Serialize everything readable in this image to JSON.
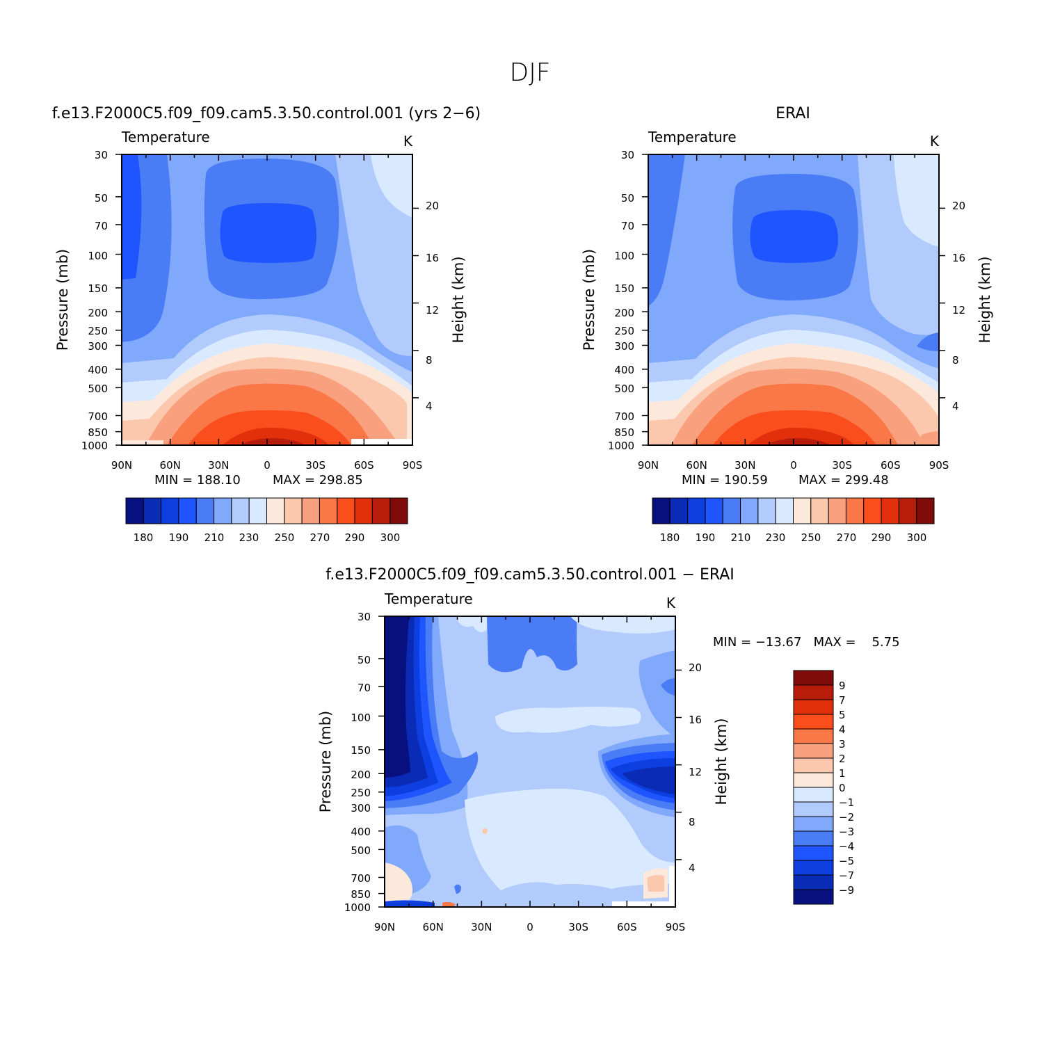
{
  "figure": {
    "title": "DJF"
  },
  "chart_data": [
    {
      "type": "heatmap",
      "id": "model",
      "title": "f.e13.F2000C5.f09_f09.cam5.3.50.control.001 (yrs 2−6)",
      "left_label": "Temperature",
      "right_label": "K",
      "ylabel": "Pressure (mb)",
      "ylabel_right": "Height (km)",
      "x_ticks": [
        "90N",
        "60N",
        "30N",
        "0",
        "30S",
        "60S",
        "90S"
      ],
      "y_ticks": [
        "30",
        "50",
        "70",
        "100",
        "150",
        "200",
        "250",
        "300",
        "400",
        "500",
        "700",
        "850",
        "1000"
      ],
      "y_values": [
        30,
        50,
        70,
        100,
        150,
        200,
        250,
        300,
        400,
        500,
        700,
        850,
        1000
      ],
      "height_ticks": [
        "4",
        "8",
        "12",
        "16",
        "20"
      ],
      "height_values": [
        4,
        8,
        12,
        16,
        20
      ],
      "ylim": [
        1000,
        30
      ],
      "yscale": "log",
      "min_label": "MIN = 188.10",
      "max_label": "MAX = 298.85",
      "min": 188.1,
      "max": 298.85,
      "colorbar_ticks": [
        "180",
        "190",
        "210",
        "230",
        "250",
        "270",
        "290",
        "300"
      ],
      "colorbar_orientation": "horizontal"
    },
    {
      "type": "heatmap",
      "id": "obs",
      "title": "ERAI",
      "left_label": "Temperature",
      "right_label": "K",
      "ylabel": "Pressure (mb)",
      "ylabel_right": "Height (km)",
      "x_ticks": [
        "90N",
        "60N",
        "30N",
        "0",
        "30S",
        "60S",
        "90S"
      ],
      "y_ticks": [
        "30",
        "50",
        "70",
        "100",
        "150",
        "200",
        "250",
        "300",
        "400",
        "500",
        "700",
        "850",
        "1000"
      ],
      "y_values": [
        30,
        50,
        70,
        100,
        150,
        200,
        250,
        300,
        400,
        500,
        700,
        850,
        1000
      ],
      "height_ticks": [
        "4",
        "8",
        "12",
        "16",
        "20"
      ],
      "height_values": [
        4,
        8,
        12,
        16,
        20
      ],
      "ylim": [
        1000,
        30
      ],
      "yscale": "log",
      "min_label": "MIN = 190.59",
      "max_label": "MAX = 299.48",
      "min": 190.59,
      "max": 299.48,
      "colorbar_ticks": [
        "180",
        "190",
        "210",
        "230",
        "250",
        "270",
        "290",
        "300"
      ],
      "colorbar_orientation": "horizontal"
    },
    {
      "type": "heatmap",
      "id": "diff",
      "title": "f.e13.F2000C5.f09_f09.cam5.3.50.control.001 − ERAI",
      "left_label": "Temperature",
      "right_label": "K",
      "ylabel": "Pressure (mb)",
      "ylabel_right": "Height (km)",
      "x_ticks": [
        "90N",
        "60N",
        "30N",
        "0",
        "30S",
        "60S",
        "90S"
      ],
      "y_ticks": [
        "30",
        "50",
        "70",
        "100",
        "150",
        "200",
        "250",
        "300",
        "400",
        "500",
        "700",
        "850",
        "1000"
      ],
      "y_values": [
        30,
        50,
        70,
        100,
        150,
        200,
        250,
        300,
        400,
        500,
        700,
        850,
        1000
      ],
      "height_ticks": [
        "4",
        "8",
        "12",
        "16",
        "20"
      ],
      "height_values": [
        4,
        8,
        12,
        16,
        20
      ],
      "ylim": [
        1000,
        30
      ],
      "yscale": "log",
      "stats_label": "MIN = −13.67   MAX =    5.75",
      "min": -13.67,
      "max": 5.75,
      "colorbar_ticks": [
        "9",
        "7",
        "5",
        "4",
        "3",
        "2",
        "1",
        "0",
        "−1",
        "−2",
        "−3",
        "−4",
        "−5",
        "−7",
        "−9"
      ],
      "colorbar_orientation": "vertical"
    }
  ],
  "palettes": {
    "abs": [
      "#08107f",
      "#0a2bb5",
      "#0d3ee0",
      "#1f55ff",
      "#4a7cf5",
      "#80a8fb",
      "#b2cbfd",
      "#d9e9ff",
      "#fde9dc",
      "#fcc8ad",
      "#f9a07e",
      "#fa7748",
      "#fb4e1d",
      "#e2300d",
      "#b81c0a",
      "#7f0a0a"
    ],
    "diff": [
      "#08107f",
      "#0a2bb5",
      "#0d3ee0",
      "#1f55ff",
      "#4a7cf5",
      "#80a8fb",
      "#b2cbfd",
      "#d9e9ff",
      "#fde9dc",
      "#fcc8ad",
      "#f9a07e",
      "#fa7748",
      "#fb4e1d",
      "#e2300d",
      "#b81c0a",
      "#7f0a0a"
    ]
  }
}
